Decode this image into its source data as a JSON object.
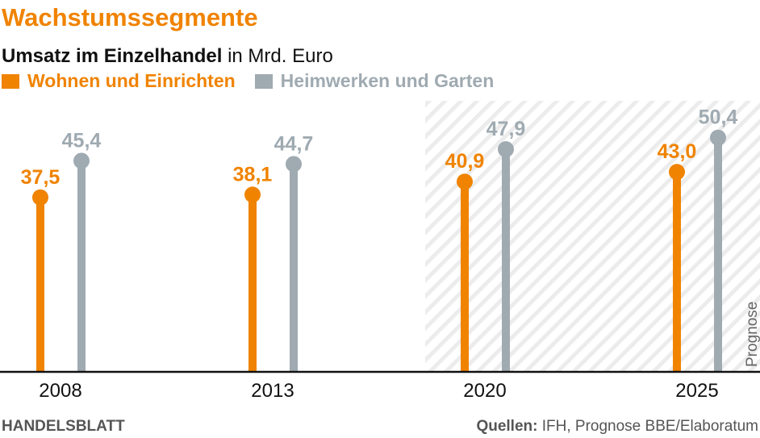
{
  "title": "Wachstumssegmente",
  "subtitle_bold": "Umsatz im Einzelhandel",
  "subtitle_rest": "in Mrd. Euro",
  "footer": {
    "brand": "HANDELSBLATT",
    "source_label": "Quellen:",
    "source_text": "IFH, Prognose BBE/Elaboratum"
  },
  "chart_data": {
    "type": "bar",
    "title": "Umsatz im Einzelhandel in Mrd. Euro",
    "categories": [
      "2008",
      "2013",
      "2020",
      "2025"
    ],
    "series": [
      {
        "name": "Wohnen und Einrichten",
        "color": "#f08300",
        "values": [
          37.5,
          38.1,
          40.9,
          43.0
        ],
        "labels": [
          "37,5",
          "38,1",
          "40,9",
          "43,0"
        ]
      },
      {
        "name": "Heimwerken und Garten",
        "color": "#9faab1",
        "values": [
          45.4,
          44.7,
          47.9,
          50.4
        ],
        "labels": [
          "45,4",
          "44,7",
          "47,9",
          "50,4"
        ]
      }
    ],
    "ylim": [
      0,
      55
    ],
    "annotation": "Prognose",
    "forecast_categories": [
      "2020",
      "2025"
    ]
  }
}
